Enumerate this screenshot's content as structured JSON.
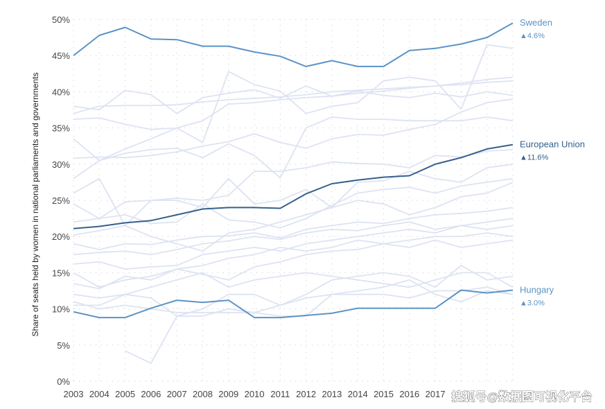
{
  "chart_data": {
    "type": "line",
    "ylabel": "Share of seats held by women in national parliaments and governments",
    "ylim": [
      0,
      50
    ],
    "yticks": [
      0,
      5,
      10,
      15,
      20,
      25,
      30,
      35,
      40,
      45,
      50
    ],
    "ytick_suffix": "%",
    "x": [
      2003,
      2004,
      2005,
      2006,
      2007,
      2008,
      2009,
      2010,
      2011,
      2012,
      2013,
      2014,
      2015,
      2016,
      2017,
      2018,
      2019,
      2020
    ],
    "xtick_labels": [
      "2003",
      "2004",
      "2005",
      "2006",
      "2007",
      "2008",
      "2009",
      "2010",
      "2011",
      "2012",
      "2013",
      "2014",
      "2015",
      "2016",
      "2017"
    ],
    "grid": "dotted",
    "colors": {
      "sweden": "#5b93c6",
      "eu": "#34608c",
      "hungary": "#5b93c6",
      "background_series": "#dde3f2",
      "tick_text": "#444444"
    },
    "highlighted_series": [
      {
        "name": "Sweden",
        "change": "▲4.6%",
        "color_key": "sweden",
        "values": [
          45.0,
          47.8,
          48.9,
          47.3,
          47.2,
          46.3,
          46.3,
          45.5,
          44.9,
          43.5,
          44.3,
          43.5,
          43.5,
          45.7,
          46.0,
          46.6,
          47.5,
          49.5
        ]
      },
      {
        "name": "European Union",
        "change": "▲11.6%",
        "color_key": "eu",
        "values": [
          21.1,
          21.4,
          21.9,
          22.2,
          23.0,
          23.8,
          24.0,
          24.0,
          23.9,
          25.9,
          27.3,
          27.8,
          28.2,
          28.4,
          30.0,
          30.9,
          32.1,
          32.7
        ]
      },
      {
        "name": "Hungary",
        "change": "▲3.0%",
        "color_key": "hungary",
        "values": [
          9.6,
          8.8,
          8.8,
          10.1,
          11.2,
          10.9,
          11.2,
          8.8,
          8.8,
          9.1,
          9.4,
          10.1,
          10.1,
          10.1,
          10.1,
          12.6,
          12.2,
          12.6
        ]
      }
    ],
    "background_series": [
      [
        37.0,
        38.0,
        38.1,
        38.1,
        38.2,
        38.6,
        38.9,
        39.1,
        39.3,
        39.6,
        40.0,
        40.2,
        40.4,
        40.6,
        40.8,
        41.0,
        41.3,
        41.5
      ],
      [
        36.2,
        36.4,
        35.5,
        34.8,
        35.0,
        36.0,
        38.3,
        38.5,
        38.9,
        39.2,
        39.4,
        39.8,
        40.1,
        40.5,
        40.8,
        41.2,
        41.7,
        42.0
      ],
      [
        38.0,
        37.5,
        40.2,
        39.6,
        37.0,
        39.2,
        39.8,
        40.3,
        39.1,
        40.8,
        39.4,
        40.1,
        39.5,
        39.2,
        39.8,
        39.3,
        40.0,
        39.5
      ],
      [
        33.5,
        30.5,
        32.1,
        33.5,
        35.0,
        33.0,
        42.8,
        41.0,
        40.1,
        37.0,
        38.0,
        38.5,
        41.5,
        42.0,
        41.5,
        37.6,
        46.5,
        46.0
      ],
      [
        30.8,
        31.0,
        30.9,
        31.2,
        31.7,
        32.5,
        33.1,
        34.2,
        33.0,
        32.2,
        33.5,
        34.1,
        34.0,
        34.8,
        35.5,
        37.2,
        38.5,
        39.0
      ],
      [
        28.0,
        30.5,
        31.5,
        32.0,
        32.2,
        30.9,
        32.8,
        31.2,
        28.1,
        35.0,
        36.5,
        36.2,
        36.2,
        36.0,
        36.0,
        36.0,
        36.5,
        36.0
      ],
      [
        26.0,
        28.0,
        21.5,
        25.0,
        25.3,
        25.0,
        25.7,
        29.0,
        29.0,
        29.5,
        30.3,
        30.1,
        30.0,
        29.5,
        31.2,
        31.0,
        31.8,
        32.0
      ],
      [
        24.5,
        22.5,
        24.8,
        25.0,
        25.0,
        24.0,
        28.0,
        24.5,
        25.0,
        26.5,
        24.0,
        27.5,
        27.7,
        29.0,
        28.0,
        27.5,
        29.5,
        30.0
      ],
      [
        22.0,
        22.5,
        23.0,
        21.8,
        22.0,
        24.5,
        22.3,
        22.0,
        21.2,
        22.5,
        24.3,
        26.0,
        26.5,
        26.8,
        26.0,
        27.0,
        27.5,
        28.0
      ],
      [
        20.2,
        20.8,
        21.5,
        20.0,
        19.0,
        18.0,
        20.5,
        21.0,
        22.0,
        23.0,
        24.0,
        25.0,
        24.5,
        23.0,
        24.0,
        25.5,
        26.0,
        27.5
      ],
      [
        19.0,
        18.2,
        19.0,
        18.9,
        19.5,
        20.0,
        20.1,
        20.5,
        19.8,
        21.0,
        21.5,
        22.0,
        21.8,
        22.5,
        23.0,
        23.2,
        23.5,
        24.0
      ],
      [
        17.5,
        17.8,
        18.0,
        17.5,
        18.2,
        19.0,
        19.4,
        20.0,
        19.6,
        20.5,
        21.0,
        20.8,
        21.5,
        22.0,
        21.0,
        21.5,
        22.0,
        22.5
      ],
      [
        16.2,
        16.5,
        15.5,
        15.8,
        16.0,
        17.5,
        18.0,
        18.5,
        18.0,
        19.0,
        19.5,
        20.0,
        20.5,
        21.0,
        20.5,
        21.5,
        21.0,
        21.5
      ],
      [
        15.0,
        13.0,
        14.0,
        14.5,
        15.5,
        16.0,
        17.0,
        17.5,
        18.5,
        18.0,
        18.5,
        19.5,
        19.0,
        19.5,
        20.0,
        20.0,
        20.5,
        20.0
      ],
      [
        13.5,
        12.8,
        14.5,
        14.0,
        15.5,
        14.8,
        14.0,
        15.8,
        16.5,
        17.5,
        18.0,
        18.2,
        19.0,
        18.5,
        19.5,
        18.5,
        19.0,
        19.5
      ],
      [
        12.0,
        11.5,
        12.0,
        13.0,
        14.0,
        15.0,
        13.0,
        14.0,
        14.5,
        15.0,
        14.5,
        14.0,
        13.5,
        13.0,
        14.0,
        15.0,
        15.0,
        13.0
      ],
      [
        11.0,
        10.0,
        10.5,
        10.0,
        9.5,
        9.5,
        9.5,
        9.5,
        10.5,
        12.0,
        14.0,
        14.5,
        15.0,
        14.5,
        13.0,
        16.0,
        14.0,
        14.5
      ],
      [
        10.5,
        10.5,
        12.0,
        11.5,
        9.0,
        9.0,
        10.0,
        9.5,
        9.0,
        9.0,
        12.0,
        12.5,
        13.0,
        14.0,
        12.0,
        11.0,
        12.5,
        12.0
      ],
      [
        null,
        null,
        4.2,
        2.5,
        9.0,
        10.0,
        12.0,
        12.0,
        10.5,
        11.5,
        12.0,
        12.0,
        12.0,
        11.5,
        12.5,
        12.5,
        13.0,
        12.0
      ]
    ]
  },
  "watermark": "搜狐号@数据图可视化平台"
}
